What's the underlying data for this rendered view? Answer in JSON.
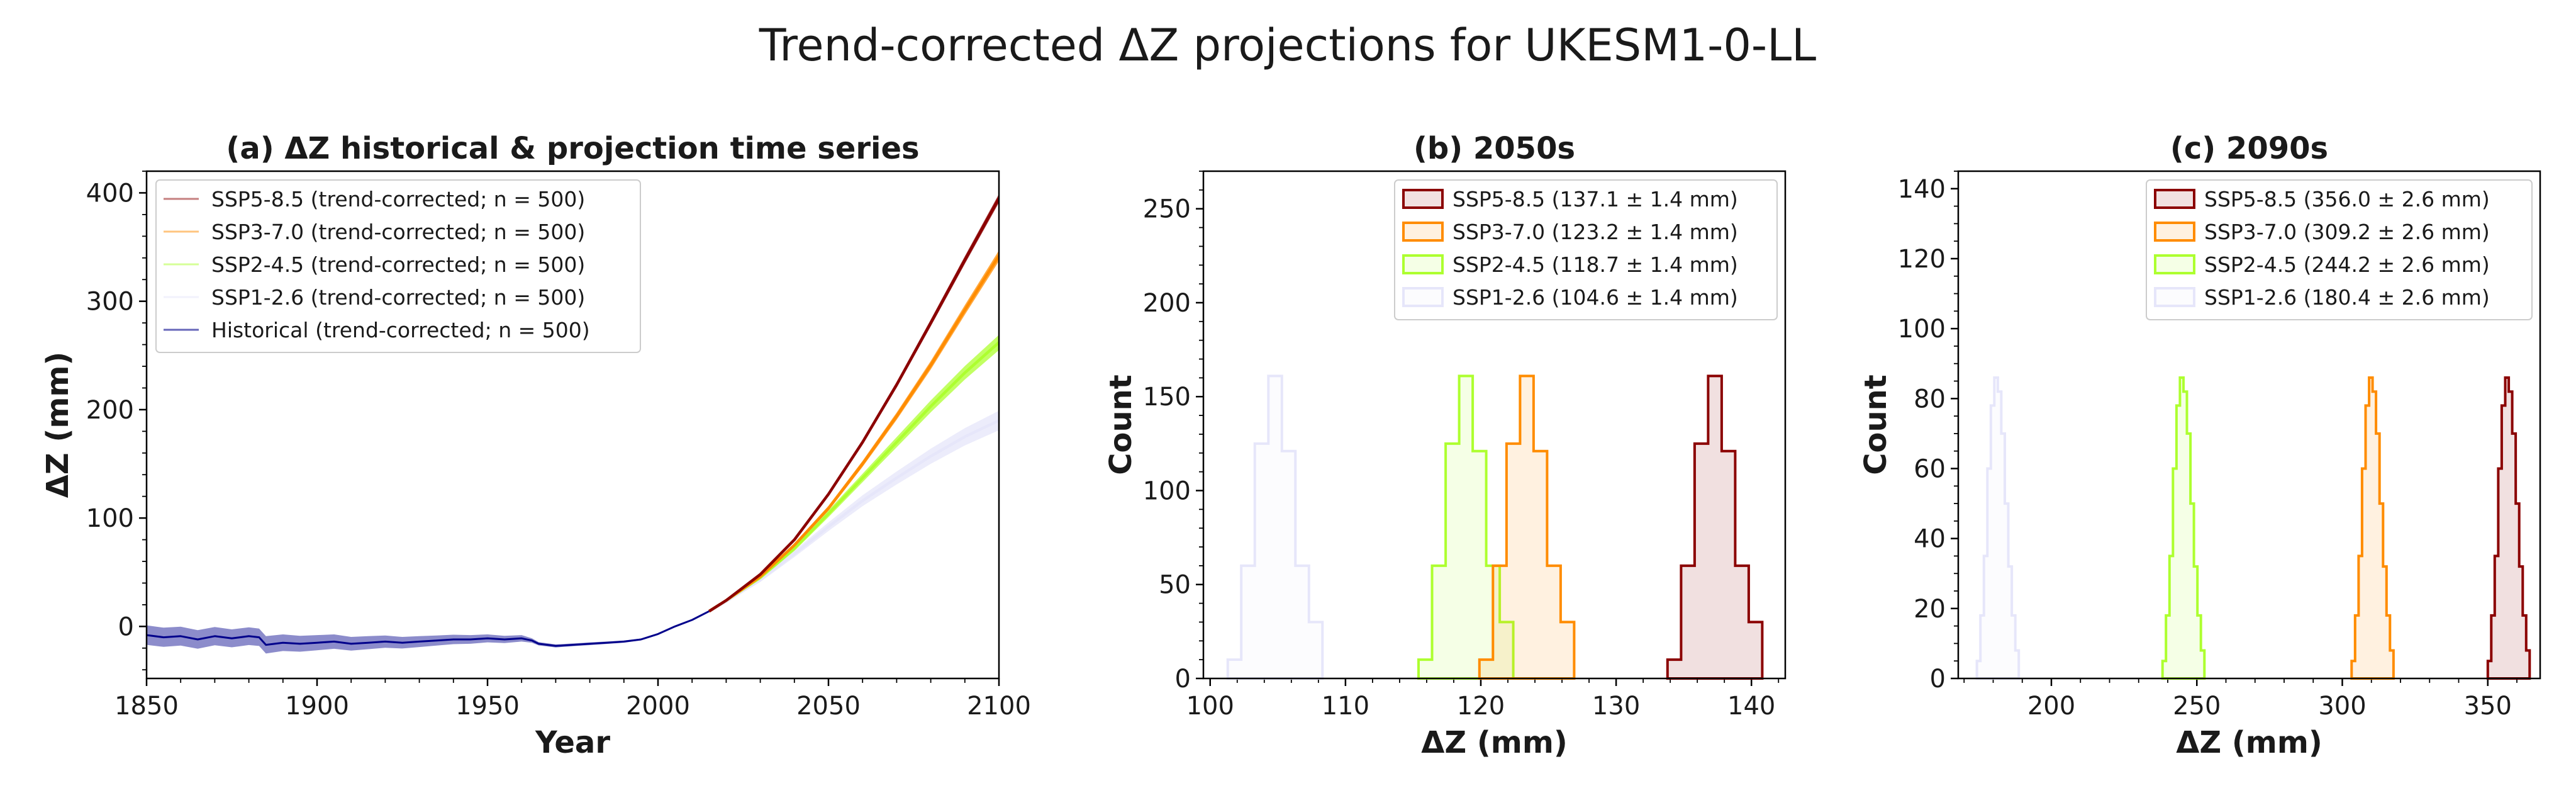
{
  "figure": {
    "title": "Trend-corrected ΔZ projections for UKESM1-0-LL"
  },
  "colors": {
    "ssp585": "#8b0000",
    "ssp370": "#ff8c00",
    "ssp245": "#adff2f",
    "ssp126": "#e6e6fa",
    "historical": "#00008b"
  },
  "chart_data": [
    {
      "type": "line",
      "title": "(a) ΔZ historical & projection time series",
      "xlabel": "Year",
      "ylabel": "ΔZ (mm)",
      "xlim": [
        1850,
        2100
      ],
      "ylim": [
        -48,
        420
      ],
      "xticks": [
        1850,
        1900,
        1950,
        2000,
        2050,
        2100
      ],
      "yticks": [
        0,
        100,
        200,
        300,
        400
      ],
      "legend_position": "upper-left",
      "series": [
        {
          "name": "SSP5-8.5 (trend-corrected; n = 500)",
          "color_key": "ssp585",
          "x": [
            2015,
            2020,
            2030,
            2040,
            2050,
            2060,
            2070,
            2080,
            2090,
            2100
          ],
          "y": [
            14,
            24,
            48,
            80,
            122,
            170,
            223,
            280,
            338,
            395
          ],
          "spread": 4
        },
        {
          "name": "SSP3-7.0 (trend-corrected; n = 500)",
          "color_key": "ssp370",
          "x": [
            2015,
            2020,
            2030,
            2040,
            2050,
            2060,
            2070,
            2080,
            2090,
            2100
          ],
          "y": [
            14,
            24,
            46,
            75,
            109,
            150,
            194,
            241,
            292,
            342
          ],
          "spread": 5
        },
        {
          "name": "SSP2-4.5 (trend-corrected; n = 500)",
          "color_key": "ssp245",
          "x": [
            2015,
            2020,
            2030,
            2040,
            2050,
            2060,
            2070,
            2080,
            2090,
            2100
          ],
          "y": [
            14,
            24,
            45,
            72,
            104,
            137,
            170,
            203,
            234,
            262
          ],
          "spread": 7
        },
        {
          "name": "SSP1-2.6 (trend-corrected; n = 500)",
          "color_key": "ssp126",
          "x": [
            2015,
            2020,
            2030,
            2040,
            2050,
            2060,
            2070,
            2080,
            2090,
            2100
          ],
          "y": [
            14,
            23,
            43,
            67,
            92,
            116,
            137,
            157,
            175,
            190
          ],
          "spread": 9
        },
        {
          "name": "Historical (trend-corrected; n = 500)",
          "color_key": "historical",
          "x": [
            1850,
            1855,
            1860,
            1865,
            1870,
            1875,
            1880,
            1883,
            1885,
            1890,
            1895,
            1900,
            1905,
            1910,
            1915,
            1920,
            1925,
            1930,
            1935,
            1940,
            1945,
            1950,
            1955,
            1960,
            1963,
            1965,
            1970,
            1975,
            1980,
            1985,
            1990,
            1995,
            2000,
            2005,
            2010,
            2015
          ],
          "y": [
            -8,
            -10,
            -9,
            -12,
            -9,
            -11,
            -9,
            -10,
            -17,
            -15,
            -16,
            -15,
            -14,
            -16,
            -15,
            -14,
            -15,
            -14,
            -13,
            -12,
            -12,
            -11,
            -12,
            -11,
            -13,
            -16,
            -18,
            -17,
            -16,
            -15,
            -14,
            -12,
            -7,
            0,
            6,
            14
          ],
          "spread_points": {
            "x": [
              1850,
              1885,
              1930,
              1960,
              1965,
              2015
            ],
            "v": [
              9,
              8,
              5,
              3,
              1.5,
              0.5
            ]
          }
        }
      ]
    },
    {
      "type": "histogram",
      "title": "(b) 2050s",
      "xlabel": "ΔZ (mm)",
      "ylabel": "Count",
      "xlim": [
        99.5,
        142.5
      ],
      "ylim": [
        0,
        270
      ],
      "xticks": [
        100,
        110,
        120,
        130,
        140
      ],
      "yticks": [
        0,
        50,
        100,
        150,
        200,
        250
      ],
      "legend_position": "upper-right",
      "series": [
        {
          "name": "SSP5-8.5 (137.1 ± 1.4 mm)",
          "color_key": "ssp585",
          "x0": 133.8,
          "width": 1.0,
          "counts": [
            10,
            60,
            125,
            161,
            121,
            60,
            30
          ]
        },
        {
          "name": "SSP3-7.0 (123.2 ± 1.4 mm)",
          "color_key": "ssp370",
          "x0": 119.9,
          "width": 1.0,
          "counts": [
            10,
            60,
            125,
            161,
            121,
            60,
            30
          ]
        },
        {
          "name": "SSP2-4.5 (118.7 ± 1.4 mm)",
          "color_key": "ssp245",
          "x0": 115.4,
          "width": 1.0,
          "counts": [
            10,
            60,
            125,
            161,
            121,
            60,
            30
          ]
        },
        {
          "name": "SSP1-2.6 (104.6 ± 1.4 mm)",
          "color_key": "ssp126",
          "x0": 101.3,
          "width": 1.0,
          "counts": [
            10,
            60,
            125,
            161,
            121,
            60,
            30
          ]
        }
      ]
    },
    {
      "type": "histogram",
      "title": "(c) 2090s",
      "xlabel": "ΔZ (mm)",
      "ylabel": "Count",
      "xlim": [
        168,
        368
      ],
      "ylim": [
        0,
        145
      ],
      "xticks": [
        200,
        250,
        300,
        350
      ],
      "yticks": [
        0,
        20,
        40,
        60,
        80,
        100,
        120,
        140
      ],
      "legend_position": "upper-right",
      "series": [
        {
          "name": "SSP5-8.5 (356.0 ± 2.6 mm)",
          "color_key": "ssp585",
          "x0": 350.0,
          "width": 1.2,
          "counts": [
            5,
            18,
            35,
            60,
            78,
            86,
            82,
            70,
            50,
            32,
            18,
            8
          ]
        },
        {
          "name": "SSP3-7.0 (309.2 ± 2.6 mm)",
          "color_key": "ssp370",
          "x0": 303.2,
          "width": 1.2,
          "counts": [
            5,
            18,
            35,
            60,
            78,
            86,
            82,
            70,
            50,
            32,
            18,
            8
          ]
        },
        {
          "name": "SSP2-4.5 (244.2 ± 2.6 mm)",
          "color_key": "ssp245",
          "x0": 238.2,
          "width": 1.2,
          "counts": [
            5,
            18,
            35,
            60,
            78,
            86,
            82,
            70,
            50,
            32,
            18,
            8
          ]
        },
        {
          "name": "SSP1-2.6 (180.4 ± 2.6 mm)",
          "color_key": "ssp126",
          "x0": 174.4,
          "width": 1.2,
          "counts": [
            5,
            18,
            35,
            60,
            78,
            86,
            82,
            70,
            50,
            32,
            18,
            8
          ]
        }
      ]
    }
  ]
}
